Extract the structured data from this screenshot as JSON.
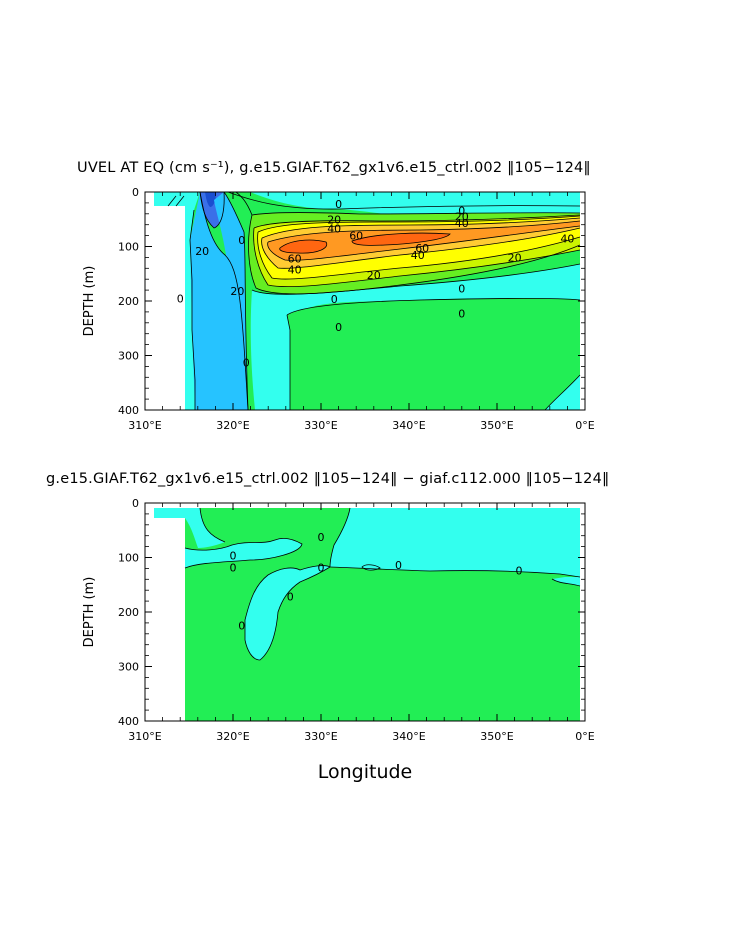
{
  "chart_data": [
    {
      "type": "contour",
      "title": "UVEL AT EQ (cm s⁻¹), g.e15.GIAF.T62_gx1v6.e15_ctrl.002 ‖105−124‖",
      "ylabel": "DEPTH (m)",
      "xlabel": "",
      "x_ticks": [
        "310°E",
        "320°E",
        "330°E",
        "340°E",
        "350°E",
        "0°E"
      ],
      "y_ticks": [
        "0",
        "100",
        "200",
        "300",
        "400"
      ],
      "xlim": [
        310,
        360
      ],
      "ylim": [
        400,
        0
      ],
      "contour_labels": [
        {
          "text": "0",
          "x": 332,
          "y": 22
        },
        {
          "text": "20",
          "x": 331.5,
          "y": 50
        },
        {
          "text": "40",
          "x": 331.5,
          "y": 67
        },
        {
          "text": "60",
          "x": 334,
          "y": 80
        },
        {
          "text": "20",
          "x": 346,
          "y": 45
        },
        {
          "text": "40",
          "x": 346,
          "y": 57
        },
        {
          "text": "0",
          "x": 346,
          "y": 34
        },
        {
          "text": "60",
          "x": 341.5,
          "y": 103
        },
        {
          "text": "40",
          "x": 341,
          "y": 116
        },
        {
          "text": "40",
          "x": 358,
          "y": 85
        },
        {
          "text": "20",
          "x": 352,
          "y": 120
        },
        {
          "text": "60",
          "x": 327,
          "y": 122
        },
        {
          "text": "40",
          "x": 327,
          "y": 142
        },
        {
          "text": "20",
          "x": 336,
          "y": 152
        },
        {
          "text": "20",
          "x": 320.5,
          "y": 182
        },
        {
          "text": "20",
          "x": 316.5,
          "y": 108
        },
        {
          "text": "0",
          "x": 331.5,
          "y": 196
        },
        {
          "text": "0",
          "x": 346,
          "y": 177
        },
        {
          "text": "0",
          "x": 346,
          "y": 223
        },
        {
          "text": "0",
          "x": 332,
          "y": 248
        },
        {
          "text": "0",
          "x": 314,
          "y": 195
        },
        {
          "text": "0",
          "x": 321.5,
          "y": 313
        },
        {
          "text": "0",
          "x": 321,
          "y": 88
        }
      ],
      "colors": [
        "#3a70e8",
        "#26c3ff",
        "#33ffee",
        "#22ee55",
        "#66ee22",
        "#ccf500",
        "#ffff00",
        "#ffcc33",
        "#ff9922",
        "#ff6611"
      ]
    },
    {
      "type": "contour",
      "title": "g.e15.GIAF.T62_gx1v6.e15_ctrl.002 ‖105−124‖ − giaf.c112.000 ‖105−124‖",
      "ylabel": "DEPTH (m)",
      "xlabel": "Longitude",
      "x_ticks": [
        "310°E",
        "320°E",
        "330°E",
        "340°E",
        "350°E",
        "0°E"
      ],
      "y_ticks": [
        "0",
        "100",
        "200",
        "300",
        "400"
      ],
      "xlim": [
        310,
        360
      ],
      "ylim": [
        400,
        0
      ],
      "contour_labels": [
        {
          "text": "0",
          "x": 330,
          "y": 62
        },
        {
          "text": "0",
          "x": 320,
          "y": 96
        },
        {
          "text": "0",
          "x": 320,
          "y": 118
        },
        {
          "text": "0",
          "x": 330,
          "y": 118
        },
        {
          "text": "0",
          "x": 338.8,
          "y": 114
        },
        {
          "text": "0",
          "x": 352.5,
          "y": 124
        },
        {
          "text": "0",
          "x": 326.5,
          "y": 172
        },
        {
          "text": "0",
          "x": 321,
          "y": 225
        }
      ],
      "colors": [
        "#33ffee",
        "#22ee55"
      ]
    }
  ]
}
